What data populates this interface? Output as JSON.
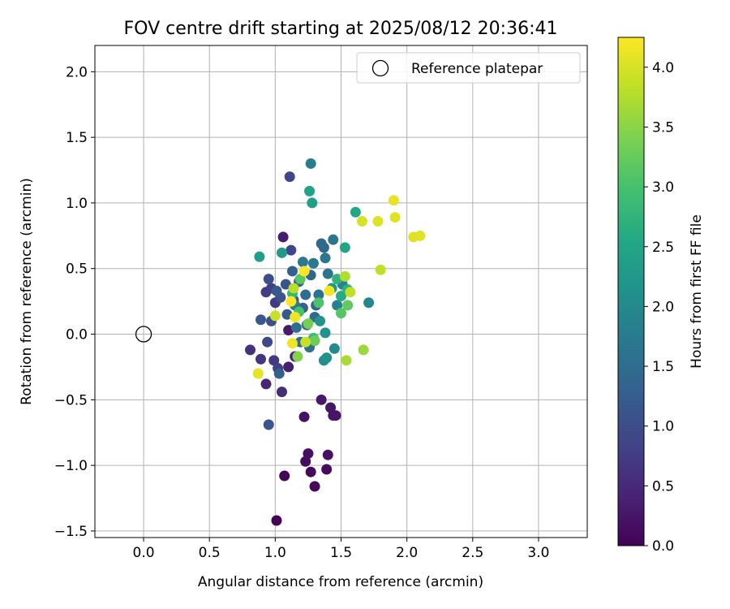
{
  "chart_data": {
    "type": "scatter",
    "title": "FOV centre drift starting at 2025/08/12 20:36:41",
    "xlabel": "Angular distance from reference (arcmin)",
    "ylabel": "Rotation from reference (arcmin)",
    "xlim": [
      -0.37,
      3.37
    ],
    "ylim": [
      -1.55,
      2.2
    ],
    "xticks": [
      0.0,
      0.5,
      1.0,
      1.5,
      2.0,
      2.5,
      3.0
    ],
    "yticks": [
      -1.5,
      -1.0,
      -0.5,
      0.0,
      0.5,
      1.0,
      1.5,
      2.0
    ],
    "xtick_labels": [
      "0.0",
      "0.5",
      "1.0",
      "1.5",
      "2.0",
      "2.5",
      "3.0"
    ],
    "ytick_labels": [
      "−1.5",
      "−1.0",
      "−0.5",
      "0.0",
      "0.5",
      "1.0",
      "1.5",
      "2.0"
    ],
    "grid": true,
    "legend": {
      "position": "top-right",
      "entries": [
        "Reference platepar"
      ]
    },
    "reference_point": {
      "x": 0.0,
      "y": 0.0,
      "label": "Reference platepar"
    },
    "colorbar": {
      "label": "Hours from first FF file",
      "range": [
        0.0,
        4.25
      ],
      "ticks": [
        0.0,
        0.5,
        1.0,
        1.5,
        2.0,
        2.5,
        3.0,
        3.5,
        4.0
      ],
      "tick_labels": [
        "0.0",
        "0.5",
        "1.0",
        "1.5",
        "2.0",
        "2.5",
        "3.0",
        "3.5",
        "4.0"
      ],
      "colormap": "viridis"
    },
    "points": [
      {
        "x": 1.01,
        "y": -1.42,
        "t": 0.02
      },
      {
        "x": 1.07,
        "y": -1.08,
        "t": 0.05
      },
      {
        "x": 1.3,
        "y": -1.16,
        "t": 0.08
      },
      {
        "x": 1.27,
        "y": -1.05,
        "t": 0.1
      },
      {
        "x": 1.39,
        "y": -1.03,
        "t": 0.12
      },
      {
        "x": 1.23,
        "y": -0.97,
        "t": 0.14
      },
      {
        "x": 1.25,
        "y": -0.91,
        "t": 0.17
      },
      {
        "x": 1.4,
        "y": -0.92,
        "t": 0.19
      },
      {
        "x": 1.22,
        "y": -0.63,
        "t": 0.21
      },
      {
        "x": 1.46,
        "y": -0.62,
        "t": 0.22
      },
      {
        "x": 1.44,
        "y": -0.62,
        "t": 0.24
      },
      {
        "x": 1.42,
        "y": -0.56,
        "t": 0.26
      },
      {
        "x": 1.35,
        "y": -0.5,
        "t": 0.28
      },
      {
        "x": 1.1,
        "y": 0.03,
        "t": 0.3
      },
      {
        "x": 1.06,
        "y": 0.74,
        "t": 0.33
      },
      {
        "x": 1.1,
        "y": -0.25,
        "t": 0.36
      },
      {
        "x": 1.15,
        "y": -0.17,
        "t": 0.4
      },
      {
        "x": 0.93,
        "y": -0.38,
        "t": 0.45
      },
      {
        "x": 1.05,
        "y": -0.44,
        "t": 0.55
      },
      {
        "x": 0.81,
        "y": -0.12,
        "t": 0.6
      },
      {
        "x": 0.89,
        "y": -0.19,
        "t": 0.65
      },
      {
        "x": 0.99,
        "y": -0.2,
        "t": 0.7
      },
      {
        "x": 1.0,
        "y": 0.24,
        "t": 0.72
      },
      {
        "x": 0.93,
        "y": 0.32,
        "t": 0.75
      },
      {
        "x": 0.97,
        "y": 0.35,
        "t": 0.8
      },
      {
        "x": 1.02,
        "y": -0.26,
        "t": 0.82
      },
      {
        "x": 1.12,
        "y": 0.64,
        "t": 0.85
      },
      {
        "x": 1.11,
        "y": 1.2,
        "t": 0.9
      },
      {
        "x": 0.94,
        "y": -0.06,
        "t": 0.95
      },
      {
        "x": 0.97,
        "y": 0.1,
        "t": 1.0
      },
      {
        "x": 0.95,
        "y": 0.42,
        "t": 1.02
      },
      {
        "x": 1.04,
        "y": 0.28,
        "t": 1.05
      },
      {
        "x": 1.08,
        "y": 0.38,
        "t": 1.1
      },
      {
        "x": 0.95,
        "y": -0.69,
        "t": 1.12
      },
      {
        "x": 0.89,
        "y": 0.11,
        "t": 1.15
      },
      {
        "x": 1.01,
        "y": 0.33,
        "t": 1.18
      },
      {
        "x": 1.09,
        "y": 0.15,
        "t": 1.2
      },
      {
        "x": 1.14,
        "y": 0.26,
        "t": 1.22
      },
      {
        "x": 1.18,
        "y": 0.4,
        "t": 1.25
      },
      {
        "x": 1.03,
        "y": -0.3,
        "t": 1.28
      },
      {
        "x": 1.13,
        "y": 0.48,
        "t": 1.3
      },
      {
        "x": 1.21,
        "y": 0.2,
        "t": 1.32
      },
      {
        "x": 1.24,
        "y": 0.07,
        "t": 1.35
      },
      {
        "x": 1.27,
        "y": 0.45,
        "t": 1.38
      },
      {
        "x": 1.31,
        "y": 0.22,
        "t": 1.4
      },
      {
        "x": 1.35,
        "y": 0.69,
        "t": 1.42
      },
      {
        "x": 1.37,
        "y": 0.66,
        "t": 1.45
      },
      {
        "x": 1.3,
        "y": 0.13,
        "t": 1.48
      },
      {
        "x": 1.23,
        "y": 0.3,
        "t": 1.5
      },
      {
        "x": 1.16,
        "y": 0.05,
        "t": 1.52
      },
      {
        "x": 1.19,
        "y": -0.06,
        "t": 1.55
      },
      {
        "x": 1.26,
        "y": -0.1,
        "t": 1.58
      },
      {
        "x": 1.33,
        "y": 0.3,
        "t": 1.6
      },
      {
        "x": 1.4,
        "y": 0.46,
        "t": 1.62
      },
      {
        "x": 1.44,
        "y": 0.72,
        "t": 1.65
      },
      {
        "x": 1.38,
        "y": 0.58,
        "t": 1.68
      },
      {
        "x": 1.29,
        "y": 0.54,
        "t": 1.7
      },
      {
        "x": 1.21,
        "y": 0.55,
        "t": 1.72
      },
      {
        "x": 1.15,
        "y": 0.22,
        "t": 1.75
      },
      {
        "x": 1.27,
        "y": 1.3,
        "t": 1.8
      },
      {
        "x": 1.47,
        "y": 0.22,
        "t": 1.85
      },
      {
        "x": 1.51,
        "y": 0.38,
        "t": 1.9
      },
      {
        "x": 1.71,
        "y": 0.24,
        "t": 1.95
      },
      {
        "x": 1.45,
        "y": -0.11,
        "t": 2.0
      },
      {
        "x": 1.37,
        "y": -0.2,
        "t": 2.05
      },
      {
        "x": 1.39,
        "y": -0.18,
        "t": 2.1
      },
      {
        "x": 1.38,
        "y": 0.01,
        "t": 2.15
      },
      {
        "x": 1.34,
        "y": 0.1,
        "t": 2.2
      },
      {
        "x": 1.43,
        "y": 0.35,
        "t": 2.25
      },
      {
        "x": 1.05,
        "y": 0.62,
        "t": 2.3
      },
      {
        "x": 0.88,
        "y": 0.59,
        "t": 2.35
      },
      {
        "x": 1.28,
        "y": 1.0,
        "t": 2.4
      },
      {
        "x": 1.26,
        "y": 1.09,
        "t": 2.45
      },
      {
        "x": 1.53,
        "y": 0.66,
        "t": 2.5
      },
      {
        "x": 1.61,
        "y": 0.93,
        "t": 2.55
      },
      {
        "x": 1.5,
        "y": 0.29,
        "t": 2.6
      },
      {
        "x": 1.55,
        "y": 0.34,
        "t": 2.7
      },
      {
        "x": 1.47,
        "y": 0.42,
        "t": 2.75
      },
      {
        "x": 1.13,
        "y": 0.31,
        "t": 2.8
      },
      {
        "x": 1.29,
        "y": -0.03,
        "t": 2.9
      },
      {
        "x": 1.18,
        "y": 0.17,
        "t": 3.0
      },
      {
        "x": 1.33,
        "y": 0.24,
        "t": 3.05
      },
      {
        "x": 1.5,
        "y": 0.16,
        "t": 3.1
      },
      {
        "x": 1.19,
        "y": 0.42,
        "t": 3.15
      },
      {
        "x": 1.55,
        "y": 0.22,
        "t": 3.2
      },
      {
        "x": 1.3,
        "y": -0.05,
        "t": 3.3
      },
      {
        "x": 1.25,
        "y": 0.08,
        "t": 3.35
      },
      {
        "x": 1.17,
        "y": -0.17,
        "t": 3.45
      },
      {
        "x": 1.67,
        "y": -0.12,
        "t": 3.6
      },
      {
        "x": 1.54,
        "y": -0.2,
        "t": 3.7
      },
      {
        "x": 1.53,
        "y": 0.44,
        "t": 3.75
      },
      {
        "x": 1.8,
        "y": 0.49,
        "t": 3.85
      },
      {
        "x": 1.57,
        "y": 0.32,
        "t": 3.85
      },
      {
        "x": 1.14,
        "y": 0.35,
        "t": 3.8
      },
      {
        "x": 1.23,
        "y": -0.06,
        "t": 3.9
      },
      {
        "x": 1.0,
        "y": 0.14,
        "t": 3.9
      },
      {
        "x": 1.66,
        "y": 0.86,
        "t": 4.0
      },
      {
        "x": 1.78,
        "y": 0.86,
        "t": 4.05
      },
      {
        "x": 1.91,
        "y": 0.89,
        "t": 4.05
      },
      {
        "x": 1.9,
        "y": 1.02,
        "t": 4.1
      },
      {
        "x": 2.05,
        "y": 0.74,
        "t": 4.05
      },
      {
        "x": 2.1,
        "y": 0.75,
        "t": 4.05
      },
      {
        "x": 0.87,
        "y": -0.3,
        "t": 4.1
      },
      {
        "x": 1.13,
        "y": -0.07,
        "t": 4.15
      },
      {
        "x": 1.15,
        "y": 0.13,
        "t": 4.15
      },
      {
        "x": 1.41,
        "y": 0.33,
        "t": 4.2
      },
      {
        "x": 1.22,
        "y": 0.48,
        "t": 4.25
      },
      {
        "x": 1.12,
        "y": 0.25,
        "t": 4.25
      }
    ]
  }
}
